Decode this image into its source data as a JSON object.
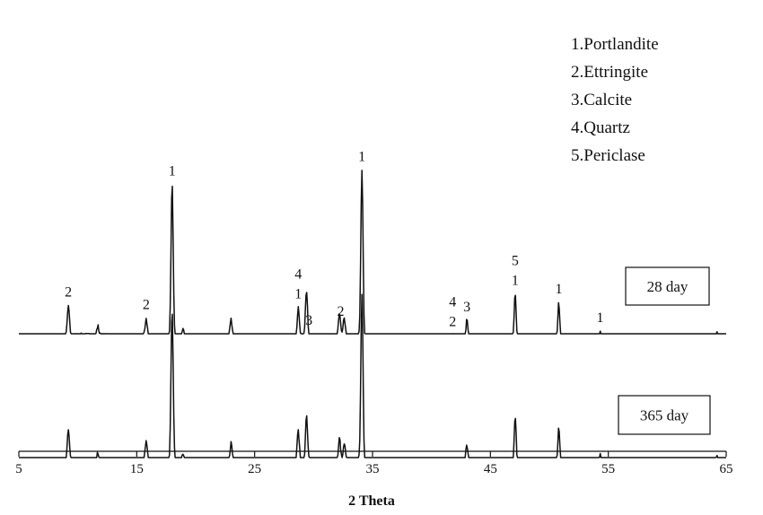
{
  "chart_data": {
    "type": "line",
    "xlabel": "2 Theta",
    "xlim": [
      5,
      65
    ],
    "xticks": [
      5,
      15,
      25,
      35,
      45,
      55,
      65
    ],
    "legend_placement": "top-right",
    "phases": [
      {
        "id": "1",
        "label": "1.Portlandite"
      },
      {
        "id": "2",
        "label": "2.Ettringite"
      },
      {
        "id": "3",
        "label": "3.Calcite"
      },
      {
        "id": "4",
        "label": "4.Quartz"
      },
      {
        "id": "5",
        "label": "5.Periclase"
      }
    ],
    "series": [
      {
        "name": "28 day",
        "color": "#111111"
      },
      {
        "name": "365 day",
        "color": "#111111"
      }
    ],
    "peaks": [
      {
        "x": 9.2,
        "rel": 0.2
      },
      {
        "x": 11.7,
        "rel": 0.06
      },
      {
        "x": 15.8,
        "rel": 0.12
      },
      {
        "x": 18.0,
        "rel": 1.0
      },
      {
        "x": 18.9,
        "rel": 0.05
      },
      {
        "x": 23.0,
        "rel": 0.12
      },
      {
        "x": 28.7,
        "rel": 0.2
      },
      {
        "x": 29.4,
        "rel": 0.3
      },
      {
        "x": 32.2,
        "rel": 0.15
      },
      {
        "x": 32.6,
        "rel": 0.12
      },
      {
        "x": 34.1,
        "rel": 1.1
      },
      {
        "x": 41.0,
        "rel": 0.04
      },
      {
        "x": 41.8,
        "rel": 0.05
      },
      {
        "x": 43.0,
        "rel": 0.15
      },
      {
        "x": 47.1,
        "rel": 0.33
      },
      {
        "x": 50.8,
        "rel": 0.28
      },
      {
        "x": 54.3,
        "rel": 0.1
      },
      {
        "x": 62.4,
        "rel": 0.08
      },
      {
        "x": 64.2,
        "rel": 0.1
      }
    ],
    "annotations": [
      {
        "x": 9.2,
        "lines": [
          "2"
        ]
      },
      {
        "x": 15.8,
        "lines": [
          "2"
        ]
      },
      {
        "x": 18.0,
        "lines": [
          "1"
        ]
      },
      {
        "x": 28.7,
        "lines": [
          "4",
          "1"
        ]
      },
      {
        "x": 29.6,
        "lines": [
          "3"
        ]
      },
      {
        "x": 32.3,
        "lines": [
          "2"
        ]
      },
      {
        "x": 34.1,
        "lines": [
          "1"
        ]
      },
      {
        "x": 41.8,
        "lines": [
          "4",
          "2"
        ]
      },
      {
        "x": 43.0,
        "lines": [
          "3"
        ]
      },
      {
        "x": 47.1,
        "lines": [
          "5",
          "1"
        ]
      },
      {
        "x": 50.8,
        "lines": [
          "1"
        ]
      },
      {
        "x": 54.3,
        "lines": [
          "1"
        ]
      }
    ]
  }
}
